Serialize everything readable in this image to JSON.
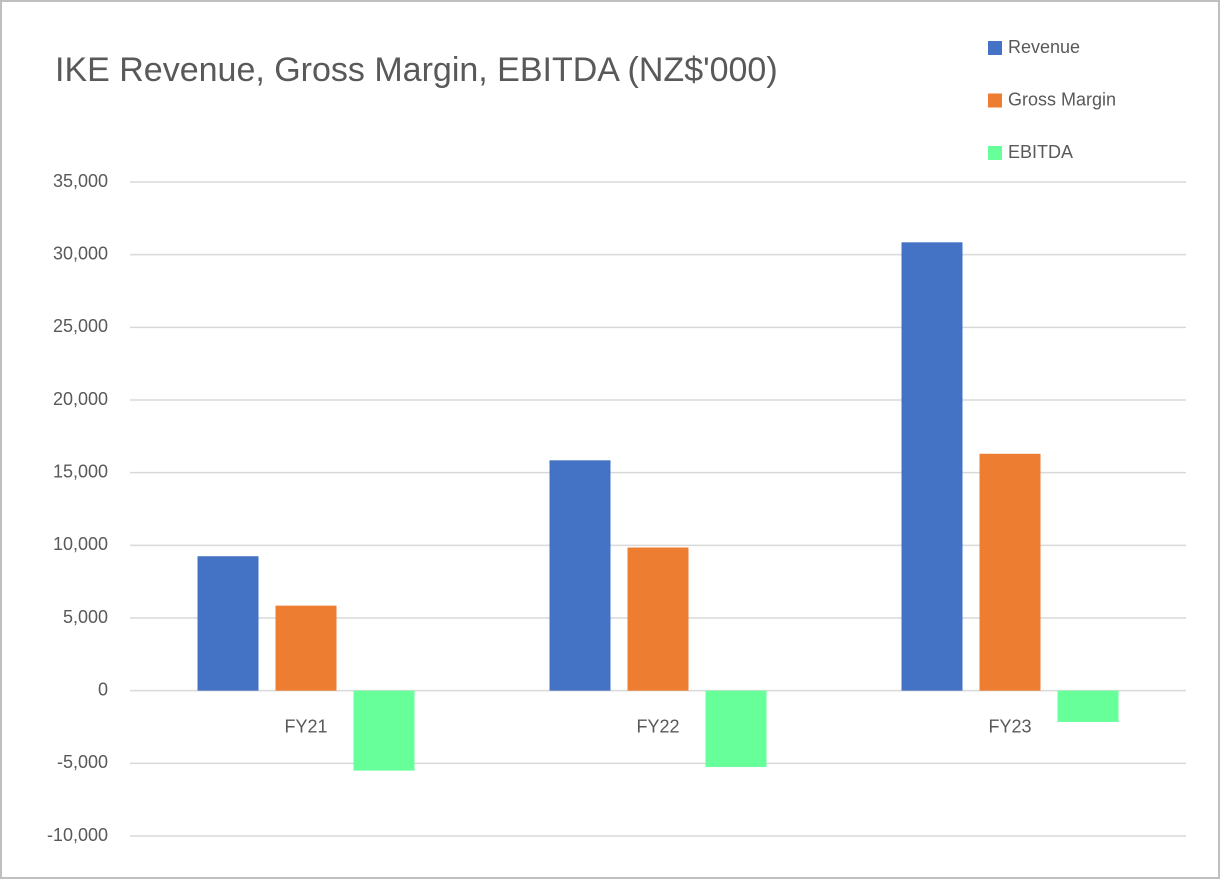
{
  "chart_data": {
    "type": "bar",
    "title": "IKE Revenue, Gross Margin, EBITDA (NZ$'000)",
    "categories": [
      "FY21",
      "FY22",
      "FY23"
    ],
    "series": [
      {
        "name": "Revenue",
        "color": "#4472c4",
        "values": [
          9250,
          15850,
          30850
        ]
      },
      {
        "name": "Gross Margin",
        "color": "#ed7d31",
        "values": [
          5850,
          9850,
          16300
        ]
      },
      {
        "name": "EBITDA",
        "color": "#66ff99",
        "values": [
          -5500,
          -5250,
          -2150
        ]
      }
    ],
    "ylim": [
      -10000,
      35000
    ],
    "yticks": [
      {
        "value": -10000,
        "label": "-10,000"
      },
      {
        "value": -5000,
        "label": "-5,000"
      },
      0,
      {
        "value": 5000,
        "label": "5,000"
      },
      {
        "value": 10000,
        "label": "10,000"
      },
      {
        "value": 15000,
        "label": "15,000"
      },
      {
        "value": 20000,
        "label": "20,000"
      },
      {
        "value": 25000,
        "label": "25,000"
      },
      {
        "value": 30000,
        "label": "30,000"
      },
      {
        "value": 35000,
        "label": "35,000"
      }
    ],
    "grid": true,
    "legend": "top-right"
  }
}
